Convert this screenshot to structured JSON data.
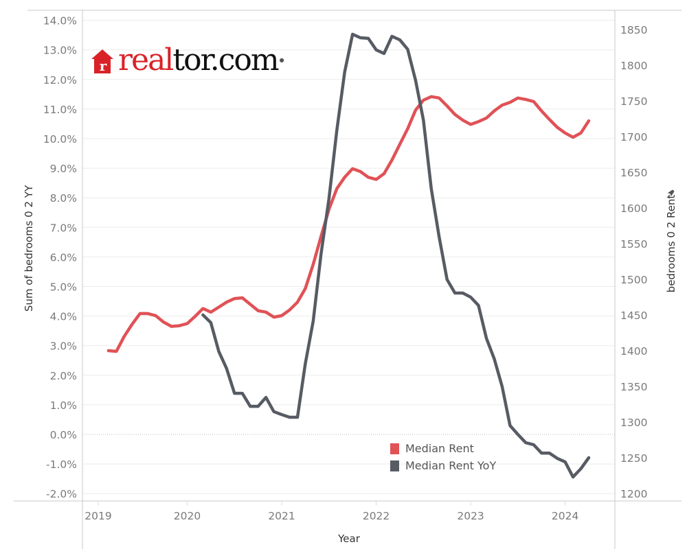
{
  "colors": {
    "rent": "#e05256",
    "yoy": "#575b63",
    "grid": "#ebebeb",
    "axis": "#c8c8c8"
  },
  "logo": {
    "brand_red": "real",
    "brand_black": "tor.com",
    "icon": "house-r-icon"
  },
  "legend": [
    {
      "label": "Median Rent",
      "color": "#e05256"
    },
    {
      "label": "Median Rent YoY",
      "color": "#575b63"
    }
  ],
  "chart_data": {
    "type": "line",
    "xlabel": "Year",
    "ylabel_left": "Sum of bedrooms 0 2 YY",
    "ylabel_right": "bedrooms 0 2 Rent",
    "right_axis_pin_icon": "pin-icon",
    "x_ticks": [
      "2019",
      "2020",
      "2021",
      "2022",
      "2023",
      "2024"
    ],
    "y_left_ticks": [
      "14.0%",
      "13.0%",
      "12.0%",
      "11.0%",
      "10.0%",
      "9.0%",
      "8.0%",
      "7.0%",
      "6.0%",
      "5.0%",
      "4.0%",
      "3.0%",
      "2.0%",
      "1.0%",
      "0.0%",
      "-1.0%",
      "-2.0%"
    ],
    "y_left_range": [
      -2.3,
      14.3
    ],
    "y_right_ticks": [
      "1850",
      "1800",
      "1750",
      "1700",
      "1650",
      "1600",
      "1550",
      "1500",
      "1450",
      "1400",
      "1350",
      "1300",
      "1250",
      "1200"
    ],
    "y_right_range": [
      1190,
      1865
    ],
    "grid": true,
    "legend_position": "bottom-right",
    "start_month": "2019-03",
    "series": [
      {
        "name": "Median Rent",
        "axis": "right",
        "values": [
          1400,
          1399,
          1420,
          1437,
          1452,
          1452,
          1449,
          1440,
          1434,
          1435,
          1438,
          1448,
          1459,
          1454,
          1461,
          1468,
          1473,
          1474,
          1465,
          1456,
          1454,
          1447,
          1449,
          1457,
          1468,
          1487,
          1521,
          1560,
          1598,
          1627,
          1643,
          1655,
          1651,
          1643,
          1640,
          1648,
          1667,
          1689,
          1711,
          1737,
          1751,
          1756,
          1754,
          1743,
          1731,
          1723,
          1717,
          1721,
          1726,
          1736,
          1744,
          1748,
          1754,
          1752,
          1749,
          1736,
          1724,
          1713,
          1705,
          1699,
          1705,
          1722
        ]
      },
      {
        "name": "Median Rent YoY",
        "axis": "left",
        "unit": "%",
        "values": [
          null,
          null,
          null,
          null,
          null,
          null,
          null,
          null,
          null,
          null,
          null,
          null,
          4.04,
          3.78,
          2.81,
          2.23,
          1.39,
          1.39,
          0.95,
          0.95,
          1.25,
          0.77,
          0.67,
          0.58,
          0.58,
          2.39,
          3.83,
          6.1,
          7.96,
          10.28,
          12.25,
          13.53,
          13.41,
          13.39,
          13.0,
          12.88,
          13.46,
          13.34,
          13.02,
          11.97,
          10.63,
          8.3,
          6.68,
          5.24,
          4.78,
          4.78,
          4.64,
          4.36,
          3.25,
          2.55,
          1.62,
          0.3,
          0.0,
          -0.28,
          -0.35,
          -0.63,
          -0.63,
          -0.81,
          -0.93,
          -1.44,
          -1.16,
          -0.79
        ]
      }
    ]
  }
}
